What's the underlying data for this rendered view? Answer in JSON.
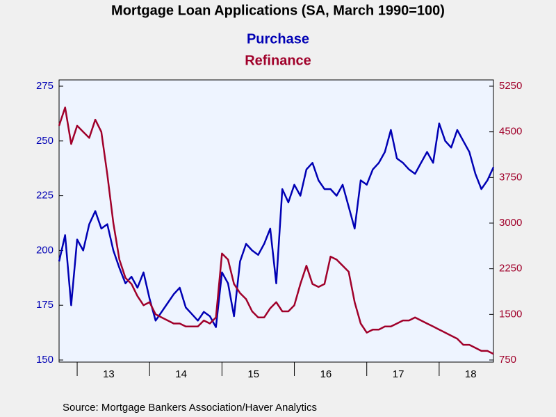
{
  "chart_data": {
    "type": "line",
    "title": "Mortgage Loan Applications (SA, March 1990=100)",
    "source": "Source:  Mortgage Bankers Association/Haver Analytics",
    "categories": [
      null,
      null,
      null,
      null,
      null,
      null,
      null,
      null,
      "13",
      null,
      null,
      null,
      null,
      null,
      null,
      null,
      null,
      null,
      null,
      null,
      "14",
      null,
      null,
      null,
      null,
      null,
      null,
      null,
      null,
      null,
      null,
      null,
      "15",
      null,
      null,
      null,
      null,
      null,
      null,
      null,
      null,
      null,
      null,
      null,
      "16",
      null,
      null,
      null,
      null,
      null,
      null,
      null,
      null,
      null,
      null,
      null,
      "17",
      null,
      null,
      null,
      null,
      null,
      null,
      null,
      null,
      null,
      null,
      null,
      "18",
      null,
      null,
      null,
      null
    ],
    "series": [
      {
        "name": "Purchase",
        "color": "#0000b4",
        "values": [
          195,
          207,
          175,
          205,
          200,
          212,
          218,
          210,
          212,
          200,
          192,
          185,
          188,
          183,
          190,
          178,
          168,
          172,
          176,
          180,
          183,
          174,
          171,
          168,
          172,
          170,
          165,
          190,
          185,
          170,
          195,
          203,
          200,
          198,
          203,
          210,
          185,
          228,
          222,
          230,
          225,
          237,
          240,
          232,
          228,
          228,
          225,
          230,
          220,
          210,
          232,
          230,
          237,
          240,
          245,
          255,
          242,
          240,
          237,
          235,
          240,
          245,
          240,
          258,
          250,
          247,
          255,
          250,
          245,
          235,
          228,
          232,
          238
        ]
      },
      {
        "name": "Refinance",
        "color": "#a0002a",
        "axis": "y2",
        "values": [
          4600,
          4900,
          4300,
          4600,
          4500,
          4400,
          4700,
          4500,
          3800,
          3000,
          2400,
          2100,
          2000,
          1800,
          1650,
          1700,
          1500,
          1450,
          1400,
          1350,
          1350,
          1300,
          1300,
          1300,
          1400,
          1350,
          1450,
          2500,
          2400,
          2000,
          1850,
          1750,
          1550,
          1450,
          1450,
          1600,
          1700,
          1550,
          1550,
          1650,
          2000,
          2300,
          2000,
          1950,
          2000,
          2450,
          2400,
          2300,
          2200,
          1700,
          1350,
          1200,
          1250,
          1250,
          1300,
          1300,
          1350,
          1400,
          1400,
          1450,
          1400,
          1350,
          1300,
          1250,
          1200,
          1150,
          1100,
          1000,
          1000,
          950,
          900,
          900,
          850
        ]
      }
    ],
    "ylim": [
      150,
      275
    ],
    "yticks": [
      150,
      175,
      200,
      225,
      250,
      275
    ],
    "y2lim": [
      750,
      5250
    ],
    "y2ticks": [
      750,
      1500,
      2250,
      3000,
      3750,
      4500,
      5250
    ]
  }
}
